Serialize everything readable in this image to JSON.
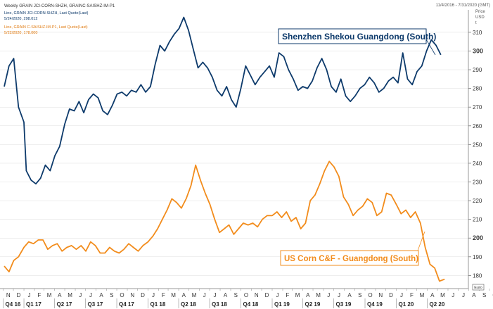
{
  "header": {
    "title": "Weekly GRAIN JCI-CORN-SHZH, GRAINC-SAISHZ-IM-P1",
    "date_range": "11/4/2016 - 7/31/2020 (GMT)",
    "axis_caption": [
      "Price",
      "USD",
      "t"
    ],
    "legend": [
      {
        "line1": "Line, GRAIN JCI-CORN-SHZH, Last Quote(Last)",
        "line2": "5/24/2020, 298.012",
        "color": "#0d3a6b"
      },
      {
        "line1": "Line, GRAIN C-SAISHZ-IM-P1, Last Quote(Last)",
        "line2": "5/22/2020, 178.000",
        "color": "#f28c1c"
      }
    ]
  },
  "annotations": {
    "shenzhen": "Shenzhen Shekou Guangdong (South)",
    "uscorn": "US Corn C&F - Guangdong (South)"
  },
  "last_value_tags": {
    "shenzhen": "300",
    "uscorn": "Euro"
  },
  "colors": {
    "shenzhen": "#0d3a6b",
    "uscorn": "#f28c1c",
    "grid": "#dcdcdc"
  },
  "chart_data": {
    "type": "line",
    "x_axis": {
      "months": [
        "N",
        "D",
        "J",
        "F",
        "M",
        "A",
        "M",
        "J",
        "J",
        "A",
        "S",
        "O",
        "N",
        "D",
        "J",
        "F",
        "M",
        "A",
        "M",
        "J",
        "J",
        "A",
        "S",
        "O",
        "N",
        "D",
        "J",
        "F",
        "M",
        "A",
        "M",
        "J",
        "J",
        "A",
        "S",
        "O",
        "N",
        "D",
        "J",
        "F",
        "M",
        "A",
        "M",
        "J",
        "J",
        "A",
        "S",
        "O",
        "N",
        "D",
        "J",
        "F",
        "M",
        "A",
        "M",
        "J",
        "J"
      ],
      "quarters": [
        "Q4 16",
        "Q1 17",
        "Q2 17",
        "Q3 17",
        "Q4 17",
        "Q1 18",
        "Q2 18",
        "Q3 18",
        "Q4 18",
        "Q1 19",
        "Q2 19",
        "Q3 19",
        "Q4 19",
        "Q1 20",
        "Q2 20"
      ],
      "range": [
        "2016-11-04",
        "2020-07-31"
      ]
    },
    "y_axis": {
      "ylim": [
        173,
        322
      ],
      "ticks": [
        180,
        190,
        200,
        210,
        220,
        230,
        240,
        250,
        260,
        270,
        280,
        290,
        300,
        310
      ],
      "major_ticks": [
        200,
        300
      ],
      "grid": false
    },
    "series": [
      {
        "name": "Shenzhen Shekou Guangdong (South)",
        "color": "#0d3a6b",
        "points": [
          [
            "2016-11-04",
            281
          ],
          [
            "2016-11-18",
            292
          ],
          [
            "2016-12-02",
            296
          ],
          [
            "2016-12-16",
            270
          ],
          [
            "2017-01-01",
            262
          ],
          [
            "2017-01-08",
            236
          ],
          [
            "2017-01-22",
            231
          ],
          [
            "2017-02-05",
            229
          ],
          [
            "2017-02-19",
            232
          ],
          [
            "2017-03-05",
            239
          ],
          [
            "2017-03-19",
            236
          ],
          [
            "2017-04-02",
            244
          ],
          [
            "2017-04-16",
            249
          ],
          [
            "2017-05-01",
            261
          ],
          [
            "2017-05-15",
            269
          ],
          [
            "2017-05-29",
            268
          ],
          [
            "2017-06-12",
            273
          ],
          [
            "2017-06-26",
            267
          ],
          [
            "2017-07-10",
            274
          ],
          [
            "2017-07-24",
            277
          ],
          [
            "2017-08-07",
            275
          ],
          [
            "2017-08-21",
            268
          ],
          [
            "2017-09-04",
            266
          ],
          [
            "2017-09-18",
            271
          ],
          [
            "2017-10-02",
            277
          ],
          [
            "2017-10-16",
            278
          ],
          [
            "2017-10-30",
            276
          ],
          [
            "2017-11-13",
            279
          ],
          [
            "2017-11-27",
            278
          ],
          [
            "2017-12-11",
            282
          ],
          [
            "2017-12-25",
            278
          ],
          [
            "2018-01-08",
            281
          ],
          [
            "2018-01-22",
            293
          ],
          [
            "2018-02-05",
            303
          ],
          [
            "2018-02-19",
            300
          ],
          [
            "2018-03-05",
            305
          ],
          [
            "2018-03-19",
            309
          ],
          [
            "2018-04-02",
            312
          ],
          [
            "2018-04-16",
            318
          ],
          [
            "2018-04-30",
            311
          ],
          [
            "2018-05-14",
            301
          ],
          [
            "2018-05-28",
            291
          ],
          [
            "2018-06-11",
            294
          ],
          [
            "2018-06-25",
            291
          ],
          [
            "2018-07-09",
            286
          ],
          [
            "2018-07-23",
            279
          ],
          [
            "2018-08-06",
            276
          ],
          [
            "2018-08-20",
            281
          ],
          [
            "2018-09-03",
            274
          ],
          [
            "2018-09-17",
            270
          ],
          [
            "2018-10-01",
            280
          ],
          [
            "2018-10-15",
            292
          ],
          [
            "2018-10-29",
            287
          ],
          [
            "2018-11-12",
            282
          ],
          [
            "2018-11-26",
            286
          ],
          [
            "2018-12-10",
            289
          ],
          [
            "2018-12-24",
            292
          ],
          [
            "2019-01-07",
            286
          ],
          [
            "2019-01-21",
            299
          ],
          [
            "2019-02-04",
            297
          ],
          [
            "2019-02-18",
            290
          ],
          [
            "2019-03-04",
            285
          ],
          [
            "2019-03-18",
            279
          ],
          [
            "2019-04-01",
            281
          ],
          [
            "2019-04-15",
            280
          ],
          [
            "2019-04-29",
            284
          ],
          [
            "2019-05-13",
            291
          ],
          [
            "2019-05-27",
            296
          ],
          [
            "2019-06-10",
            290
          ],
          [
            "2019-06-24",
            281
          ],
          [
            "2019-07-08",
            278
          ],
          [
            "2019-07-22",
            285
          ],
          [
            "2019-08-05",
            276
          ],
          [
            "2019-08-19",
            273
          ],
          [
            "2019-09-02",
            276
          ],
          [
            "2019-09-16",
            280
          ],
          [
            "2019-09-30",
            282
          ],
          [
            "2019-10-14",
            286
          ],
          [
            "2019-10-28",
            283
          ],
          [
            "2019-11-11",
            278
          ],
          [
            "2019-11-25",
            280
          ],
          [
            "2019-12-09",
            284
          ],
          [
            "2019-12-23",
            286
          ],
          [
            "2020-01-06",
            283
          ],
          [
            "2020-01-20",
            299
          ],
          [
            "2020-02-03",
            285
          ],
          [
            "2020-02-17",
            282
          ],
          [
            "2020-03-02",
            289
          ],
          [
            "2020-03-16",
            292
          ],
          [
            "2020-03-30",
            300
          ],
          [
            "2020-04-13",
            306
          ],
          [
            "2020-04-27",
            303
          ],
          [
            "2020-05-11",
            298
          ]
        ]
      },
      {
        "name": "US Corn C&F - Guangdong (South)",
        "color": "#f28c1c",
        "points": [
          [
            "2016-11-04",
            185
          ],
          [
            "2016-11-18",
            182
          ],
          [
            "2016-12-02",
            188
          ],
          [
            "2016-12-16",
            190
          ],
          [
            "2017-01-01",
            195
          ],
          [
            "2017-01-15",
            198
          ],
          [
            "2017-01-29",
            197
          ],
          [
            "2017-02-12",
            199
          ],
          [
            "2017-02-26",
            199
          ],
          [
            "2017-03-12",
            194
          ],
          [
            "2017-03-26",
            196
          ],
          [
            "2017-04-09",
            197
          ],
          [
            "2017-04-23",
            193
          ],
          [
            "2017-05-07",
            195
          ],
          [
            "2017-05-21",
            196
          ],
          [
            "2017-06-04",
            194
          ],
          [
            "2017-06-18",
            196
          ],
          [
            "2017-07-02",
            193
          ],
          [
            "2017-07-16",
            198
          ],
          [
            "2017-07-30",
            196
          ],
          [
            "2017-08-13",
            192
          ],
          [
            "2017-08-27",
            192
          ],
          [
            "2017-09-10",
            195
          ],
          [
            "2017-09-24",
            193
          ],
          [
            "2017-10-08",
            192
          ],
          [
            "2017-10-22",
            194
          ],
          [
            "2017-11-05",
            197
          ],
          [
            "2017-11-19",
            195
          ],
          [
            "2017-12-03",
            193
          ],
          [
            "2017-12-17",
            196
          ],
          [
            "2018-01-01",
            198
          ],
          [
            "2018-01-15",
            201
          ],
          [
            "2018-01-29",
            205
          ],
          [
            "2018-02-12",
            210
          ],
          [
            "2018-02-26",
            215
          ],
          [
            "2018-03-12",
            221
          ],
          [
            "2018-03-26",
            219
          ],
          [
            "2018-04-09",
            216
          ],
          [
            "2018-04-23",
            221
          ],
          [
            "2018-05-07",
            228
          ],
          [
            "2018-05-21",
            239
          ],
          [
            "2018-06-04",
            231
          ],
          [
            "2018-06-18",
            224
          ],
          [
            "2018-07-02",
            218
          ],
          [
            "2018-07-16",
            210
          ],
          [
            "2018-07-30",
            203
          ],
          [
            "2018-08-13",
            205
          ],
          [
            "2018-08-27",
            207
          ],
          [
            "2018-09-10",
            202
          ],
          [
            "2018-09-24",
            205
          ],
          [
            "2018-10-08",
            208
          ],
          [
            "2018-10-22",
            207
          ],
          [
            "2018-11-05",
            208
          ],
          [
            "2018-11-19",
            206
          ],
          [
            "2018-12-03",
            210
          ],
          [
            "2018-12-17",
            212
          ],
          [
            "2019-01-01",
            212
          ],
          [
            "2019-01-15",
            214
          ],
          [
            "2019-01-29",
            211
          ],
          [
            "2019-02-12",
            214
          ],
          [
            "2019-02-26",
            209
          ],
          [
            "2019-03-12",
            211
          ],
          [
            "2019-03-26",
            205
          ],
          [
            "2019-04-09",
            208
          ],
          [
            "2019-04-23",
            220
          ],
          [
            "2019-05-07",
            223
          ],
          [
            "2019-05-21",
            229
          ],
          [
            "2019-06-04",
            236
          ],
          [
            "2019-06-18",
            241
          ],
          [
            "2019-07-02",
            238
          ],
          [
            "2019-07-16",
            233
          ],
          [
            "2019-07-30",
            222
          ],
          [
            "2019-08-13",
            218
          ],
          [
            "2019-08-27",
            212
          ],
          [
            "2019-09-10",
            215
          ],
          [
            "2019-09-24",
            217
          ],
          [
            "2019-10-08",
            221
          ],
          [
            "2019-10-22",
            219
          ],
          [
            "2019-11-05",
            212
          ],
          [
            "2019-11-19",
            214
          ],
          [
            "2019-12-03",
            224
          ],
          [
            "2019-12-17",
            223
          ],
          [
            "2020-01-01",
            218
          ],
          [
            "2020-01-15",
            213
          ],
          [
            "2020-01-29",
            215
          ],
          [
            "2020-02-12",
            211
          ],
          [
            "2020-02-26",
            214
          ],
          [
            "2020-03-12",
            208
          ],
          [
            "2020-03-26",
            195
          ],
          [
            "2020-04-09",
            186
          ],
          [
            "2020-04-23",
            184
          ],
          [
            "2020-05-07",
            177
          ],
          [
            "2020-05-22",
            178
          ]
        ]
      }
    ]
  }
}
